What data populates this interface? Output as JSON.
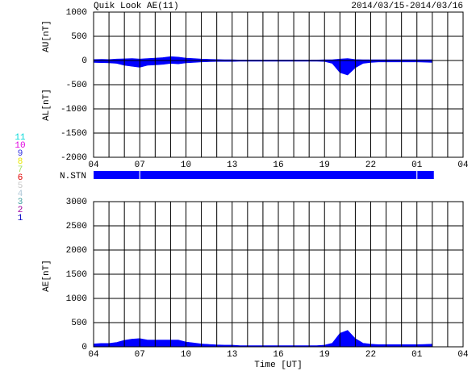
{
  "chart_data": [
    {
      "type": "area",
      "title": "Quik Look AE(11)",
      "subtitle": "2014/03/15-2014/03/16",
      "ylabels": [
        "AU[nT]",
        "AL[nT]"
      ],
      "x": [
        0,
        0.5,
        1,
        1.5,
        2,
        2.5,
        3,
        3.5,
        4,
        4.5,
        5,
        5.5,
        6,
        6.5,
        7,
        7.5,
        8,
        8.5,
        9,
        9.5,
        10,
        10.5,
        11,
        11.5,
        12,
        12.5,
        13,
        13.5,
        14,
        14.5,
        15,
        15.5,
        16,
        16.5,
        17,
        17.5,
        18,
        18.5,
        19,
        19.5,
        20,
        20.5,
        21,
        21.5,
        22
      ],
      "series": [
        {
          "name": "AU",
          "color": "#0000ff",
          "values": [
            20,
            25,
            20,
            30,
            35,
            40,
            30,
            40,
            50,
            60,
            80,
            70,
            50,
            40,
            30,
            25,
            20,
            15,
            15,
            10,
            10,
            10,
            10,
            10,
            10,
            10,
            10,
            10,
            10,
            10,
            15,
            15,
            30,
            40,
            20,
            15,
            15,
            15,
            15,
            15,
            15,
            15,
            15,
            15,
            15
          ]
        },
        {
          "name": "AL",
          "color": "#0000ff",
          "values": [
            -40,
            -45,
            -50,
            -60,
            -100,
            -120,
            -140,
            -100,
            -90,
            -80,
            -60,
            -70,
            -50,
            -40,
            -30,
            -25,
            -20,
            -20,
            -20,
            -15,
            -15,
            -15,
            -15,
            -15,
            -15,
            -15,
            -15,
            -15,
            -15,
            -15,
            -20,
            -60,
            -250,
            -300,
            -150,
            -60,
            -40,
            -30,
            -30,
            -30,
            -30,
            -30,
            -30,
            -35,
            -40
          ]
        }
      ],
      "xlim": [
        0,
        24
      ],
      "xticks": [
        {
          "value": 0,
          "label": "04"
        },
        {
          "value": 3,
          "label": "07"
        },
        {
          "value": 6,
          "label": "10"
        },
        {
          "value": 9,
          "label": "13"
        },
        {
          "value": 12,
          "label": "16"
        },
        {
          "value": 15,
          "label": "19"
        },
        {
          "value": 18,
          "label": "22"
        },
        {
          "value": 21,
          "label": "01"
        },
        {
          "value": 24,
          "label": "04"
        }
      ],
      "ylim": [
        -2000,
        1000
      ],
      "yticks": [
        1000,
        500,
        0,
        -500,
        -1000,
        -1500,
        -2000
      ],
      "grid": true,
      "x_grid_step": 1
    },
    {
      "type": "strip",
      "label": "N.STN",
      "color": "#0000ff",
      "xlim": [
        0,
        24
      ],
      "spans": [
        [
          0,
          2.97
        ],
        [
          3.03,
          20.97
        ],
        [
          21.03,
          22.1
        ]
      ],
      "stations": [
        {
          "label": "11",
          "color": "#00d8d8"
        },
        {
          "label": "10",
          "color": "#e000e0"
        },
        {
          "label": "9",
          "color": "#3030e0"
        },
        {
          "label": "8",
          "color": "#e8e800"
        },
        {
          "label": "7",
          "color": "#a0e060"
        },
        {
          "label": "6",
          "color": "#e00000"
        },
        {
          "label": "5",
          "color": "#c8c8c8"
        },
        {
          "label": "4",
          "color": "#b0c8d8"
        },
        {
          "label": "3",
          "color": "#40a0a0"
        },
        {
          "label": "2",
          "color": "#a000a0"
        },
        {
          "label": "1",
          "color": "#0000c0"
        }
      ]
    },
    {
      "type": "area",
      "ylabels": [
        "AE[nT]"
      ],
      "xlabel": "Time [UT]",
      "x": [
        0,
        0.5,
        1,
        1.5,
        2,
        2.5,
        3,
        3.5,
        4,
        4.5,
        5,
        5.5,
        6,
        6.5,
        7,
        7.5,
        8,
        8.5,
        9,
        9.5,
        10,
        10.5,
        11,
        11.5,
        12,
        12.5,
        13,
        13.5,
        14,
        14.5,
        15,
        15.5,
        16,
        16.5,
        17,
        17.5,
        18,
        18.5,
        19,
        19.5,
        20,
        20.5,
        21,
        21.5,
        22
      ],
      "series": [
        {
          "name": "AE",
          "color": "#0000ff",
          "values": [
            60,
            70,
            70,
            90,
            135,
            160,
            170,
            140,
            140,
            140,
            140,
            140,
            100,
            80,
            60,
            50,
            40,
            35,
            35,
            25,
            25,
            25,
            25,
            25,
            25,
            25,
            25,
            25,
            25,
            25,
            35,
            75,
            280,
            340,
            170,
            75,
            55,
            45,
            45,
            45,
            45,
            45,
            45,
            50,
            55
          ]
        }
      ],
      "xlim": [
        0,
        24
      ],
      "xticks": [
        {
          "value": 0,
          "label": "04"
        },
        {
          "value": 3,
          "label": "07"
        },
        {
          "value": 6,
          "label": "10"
        },
        {
          "value": 9,
          "label": "13"
        },
        {
          "value": 12,
          "label": "16"
        },
        {
          "value": 15,
          "label": "19"
        },
        {
          "value": 18,
          "label": "22"
        },
        {
          "value": 21,
          "label": "01"
        },
        {
          "value": 24,
          "label": "04"
        }
      ],
      "ylim": [
        0,
        3000
      ],
      "yticks": [
        0,
        500,
        1000,
        1500,
        2000,
        2500,
        3000
      ],
      "grid": true,
      "x_grid_step": 1
    }
  ]
}
